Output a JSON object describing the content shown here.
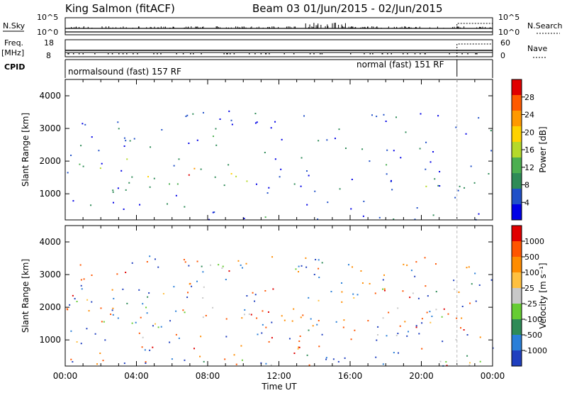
{
  "header": {
    "station": "King Salmon (fitACF)",
    "beam_range": "Beam 03  01/Jun/2015 - 02/Jun/2015"
  },
  "status_panels": {
    "nsky_label": "N.Sky",
    "nsky_ticks": [
      "10^5",
      "10^0"
    ],
    "nsearch_label": "N.Search",
    "nsearch_ticks": [
      "10^5",
      "10^0"
    ],
    "freq_label_1": "Freq.",
    "freq_label_2": "[MHz]",
    "freq_ticks": [
      "18",
      "8"
    ],
    "nave_label": "Nave",
    "nave_ticks": [
      "60",
      "0"
    ],
    "cpid_label": "CPID",
    "cpid_modes": [
      {
        "label": "normalsound (fast) 157 RF",
        "start_h": 0,
        "end_h": 22.0
      },
      {
        "label": "normal (fast) 151 RF",
        "start_h": 22.0,
        "end_h": 24
      }
    ]
  },
  "chart_data": [
    {
      "type": "heatmap",
      "name": "power",
      "ylabel": "Slant Range [km]",
      "xlabel": "",
      "xlim": [
        0,
        24
      ],
      "ylim": [
        200,
        4500
      ],
      "yticks": [
        "1000",
        "2000",
        "3000",
        "4000"
      ],
      "colorbar": {
        "label": "Power [dB]",
        "ticks": [
          "28",
          "24",
          "20",
          "16",
          "12",
          "8",
          "4"
        ],
        "colors": [
          "#0000e6",
          "#2050c8",
          "#2e8b57",
          "#4caf50",
          "#b5d92a",
          "#ffd200",
          "#ff9900",
          "#ff5a00",
          "#e00000"
        ]
      },
      "clusters": [
        {
          "t0": 0,
          "t1": 10.5,
          "r0": 1300,
          "r1": 2100,
          "level": 0.45
        },
        {
          "t0": 6.5,
          "t1": 8.8,
          "r0": 1200,
          "r1": 1900,
          "level": 0.85
        },
        {
          "t0": 9,
          "t1": 10.4,
          "r0": 900,
          "r1": 1700,
          "level": 0.35
        },
        {
          "t0": 11.8,
          "t1": 13.6,
          "r0": 1200,
          "r1": 1900,
          "level": 0.3
        },
        {
          "t0": 6,
          "t1": 10,
          "r0": 2200,
          "r1": 3600,
          "level": 0.15
        },
        {
          "t0": 10,
          "t1": 16,
          "r0": 1900,
          "r1": 3000,
          "level": 0.1
        },
        {
          "t0": 16.5,
          "t1": 22,
          "r0": 1600,
          "r1": 2800,
          "level": 0.12
        },
        {
          "t0": 16.5,
          "t1": 24,
          "r0": 900,
          "r1": 1250,
          "level": 0.3
        },
        {
          "t0": 0,
          "t1": 24,
          "r0": 200,
          "r1": 420,
          "level": 0.1
        }
      ]
    },
    {
      "type": "heatmap",
      "name": "velocity",
      "ylabel": "Slant Range [km]",
      "xlabel": "Time UT",
      "xlim": [
        0,
        24
      ],
      "ylim": [
        200,
        4500
      ],
      "xticks": [
        "00:00",
        "04:00",
        "08:00",
        "12:00",
        "16:00",
        "20:00",
        "00:00"
      ],
      "yticks": [
        "1000",
        "2000",
        "3000",
        "4000"
      ],
      "colorbar": {
        "label": "Velocity [m s⁻¹]",
        "ticks": [
          "1000",
          "500",
          "100",
          "25",
          "-25",
          "-100",
          "-500",
          "-1000"
        ],
        "colors": [
          "#1f3fbf",
          "#2a7fd8",
          "#2e8b57",
          "#66cc33",
          "#c8c8c8",
          "#ffc040",
          "#ff8c00",
          "#ff5500",
          "#e00000"
        ]
      },
      "clusters": [
        {
          "t0": 0,
          "t1": 10.5,
          "r0": 1300,
          "r1": 2100,
          "velocity": 0
        },
        {
          "t0": 9.8,
          "t1": 10.8,
          "r0": 1000,
          "r1": 1750,
          "velocity": -700
        },
        {
          "t0": 11.8,
          "t1": 13.6,
          "r0": 1300,
          "r1": 1850,
          "velocity": -300
        },
        {
          "t0": 6,
          "t1": 10,
          "r0": 2200,
          "r1": 3400,
          "velocity": 0
        },
        {
          "t0": 16.5,
          "t1": 22,
          "r0": 1600,
          "r1": 2700,
          "velocity": 0
        },
        {
          "t0": 16.5,
          "t1": 24,
          "r0": 900,
          "r1": 1250,
          "velocity": 0
        },
        {
          "t0": 0,
          "t1": 24,
          "r0": 200,
          "r1": 420,
          "velocity": 0
        }
      ]
    }
  ]
}
